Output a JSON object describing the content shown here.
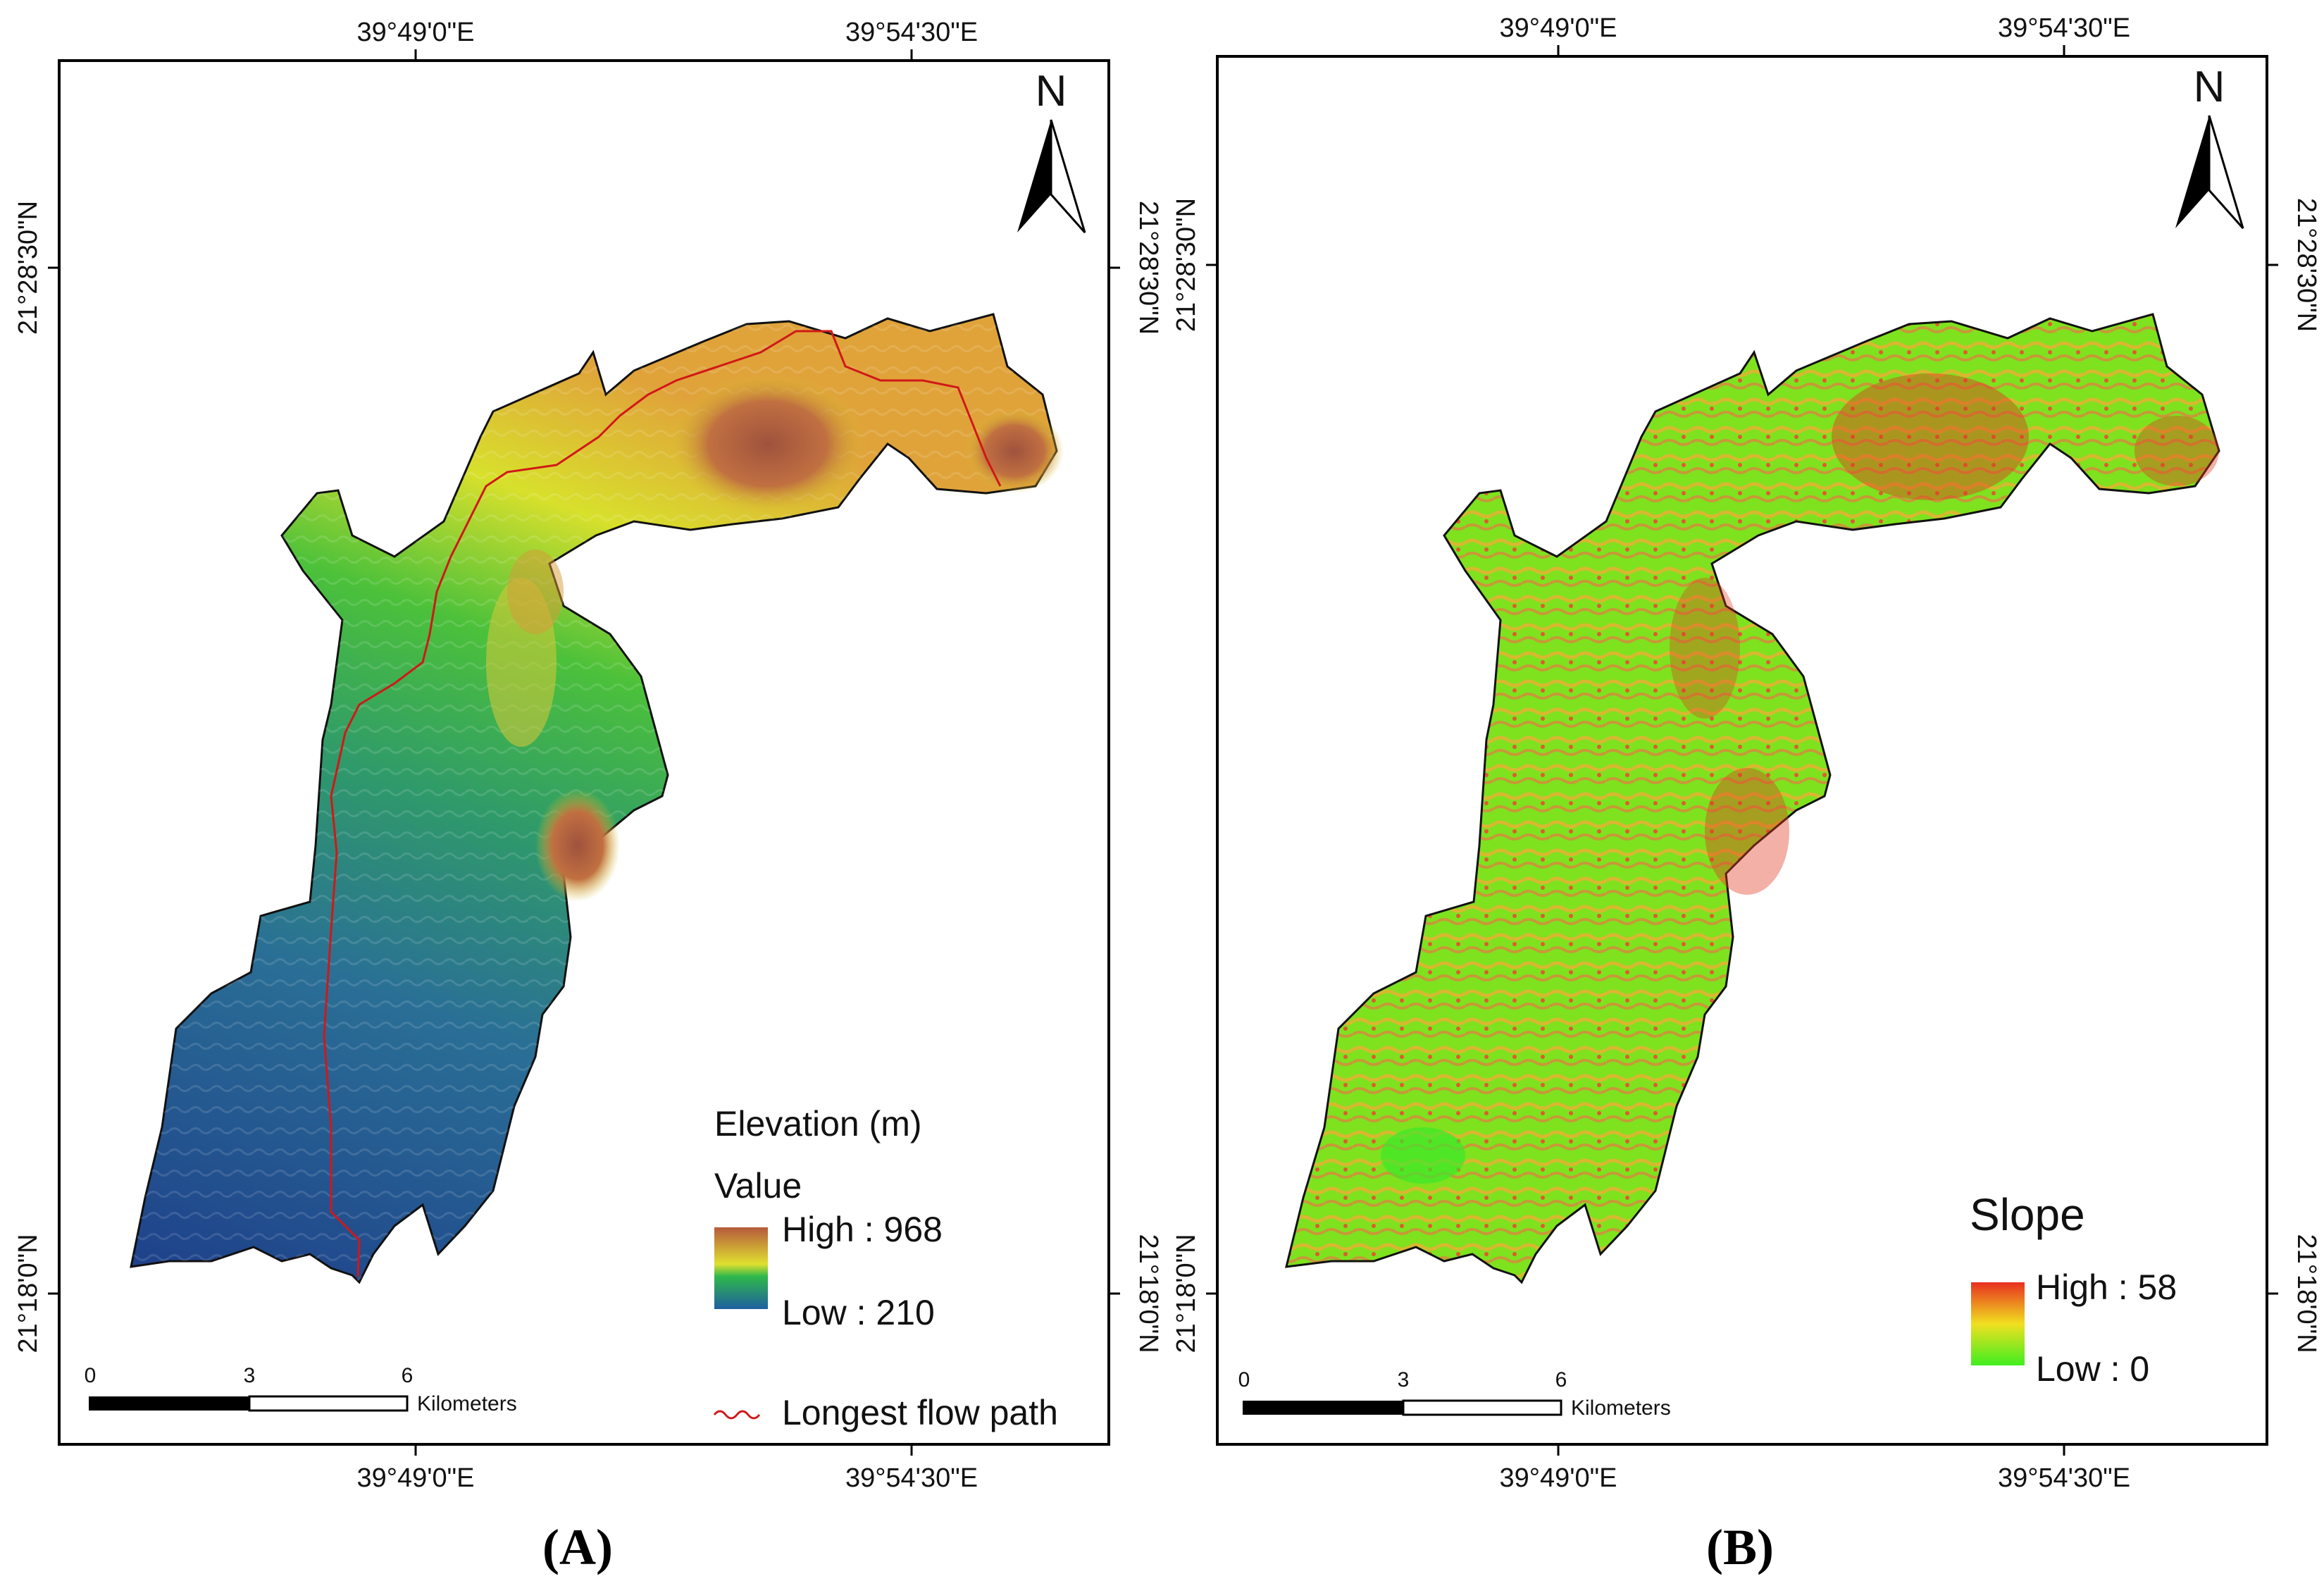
{
  "panels": [
    {
      "id": "A",
      "caption": "A",
      "coords": {
        "top": [
          "39°49'0\"E",
          "39°54'30\"E"
        ],
        "bottom": [
          "39°49'0\"E",
          "39°54'30\"E"
        ],
        "left": [
          "21°28'30\"N",
          "21°18'0\"N"
        ],
        "right": [
          "21°28'30\"N",
          "21°18'0\"N"
        ]
      },
      "north": "N",
      "legend": {
        "title": "Elevation (m)",
        "subtitle": "Value",
        "high": "High : 968",
        "low": "Low : 210",
        "line": "Longest flow path",
        "colors": [
          "#b55a3c",
          "#e0e030",
          "#2fb84a",
          "#1f5fa0"
        ]
      },
      "scale": {
        "ticks": [
          "0",
          "3",
          "6"
        ],
        "unit": "Kilometers"
      }
    },
    {
      "id": "B",
      "caption": "B",
      "coords": {
        "top": [
          "39°49'0\"E",
          "39°54'30\"E"
        ],
        "bottom": [
          "39°49'0\"E",
          "39°54'30\"E"
        ],
        "left": [
          "21°28'30\"N",
          "21°18'0\"N"
        ],
        "right": [
          "21°28'30\"N",
          "21°18'0\"N"
        ]
      },
      "north": "N",
      "legend": {
        "title": "Slope",
        "high": "High : 58",
        "low": "Low : 0",
        "colors": [
          "#e83020",
          "#f0e020",
          "#40ee20"
        ]
      },
      "scale": {
        "ticks": [
          "0",
          "3",
          "6"
        ],
        "unit": "Kilometers"
      }
    }
  ]
}
